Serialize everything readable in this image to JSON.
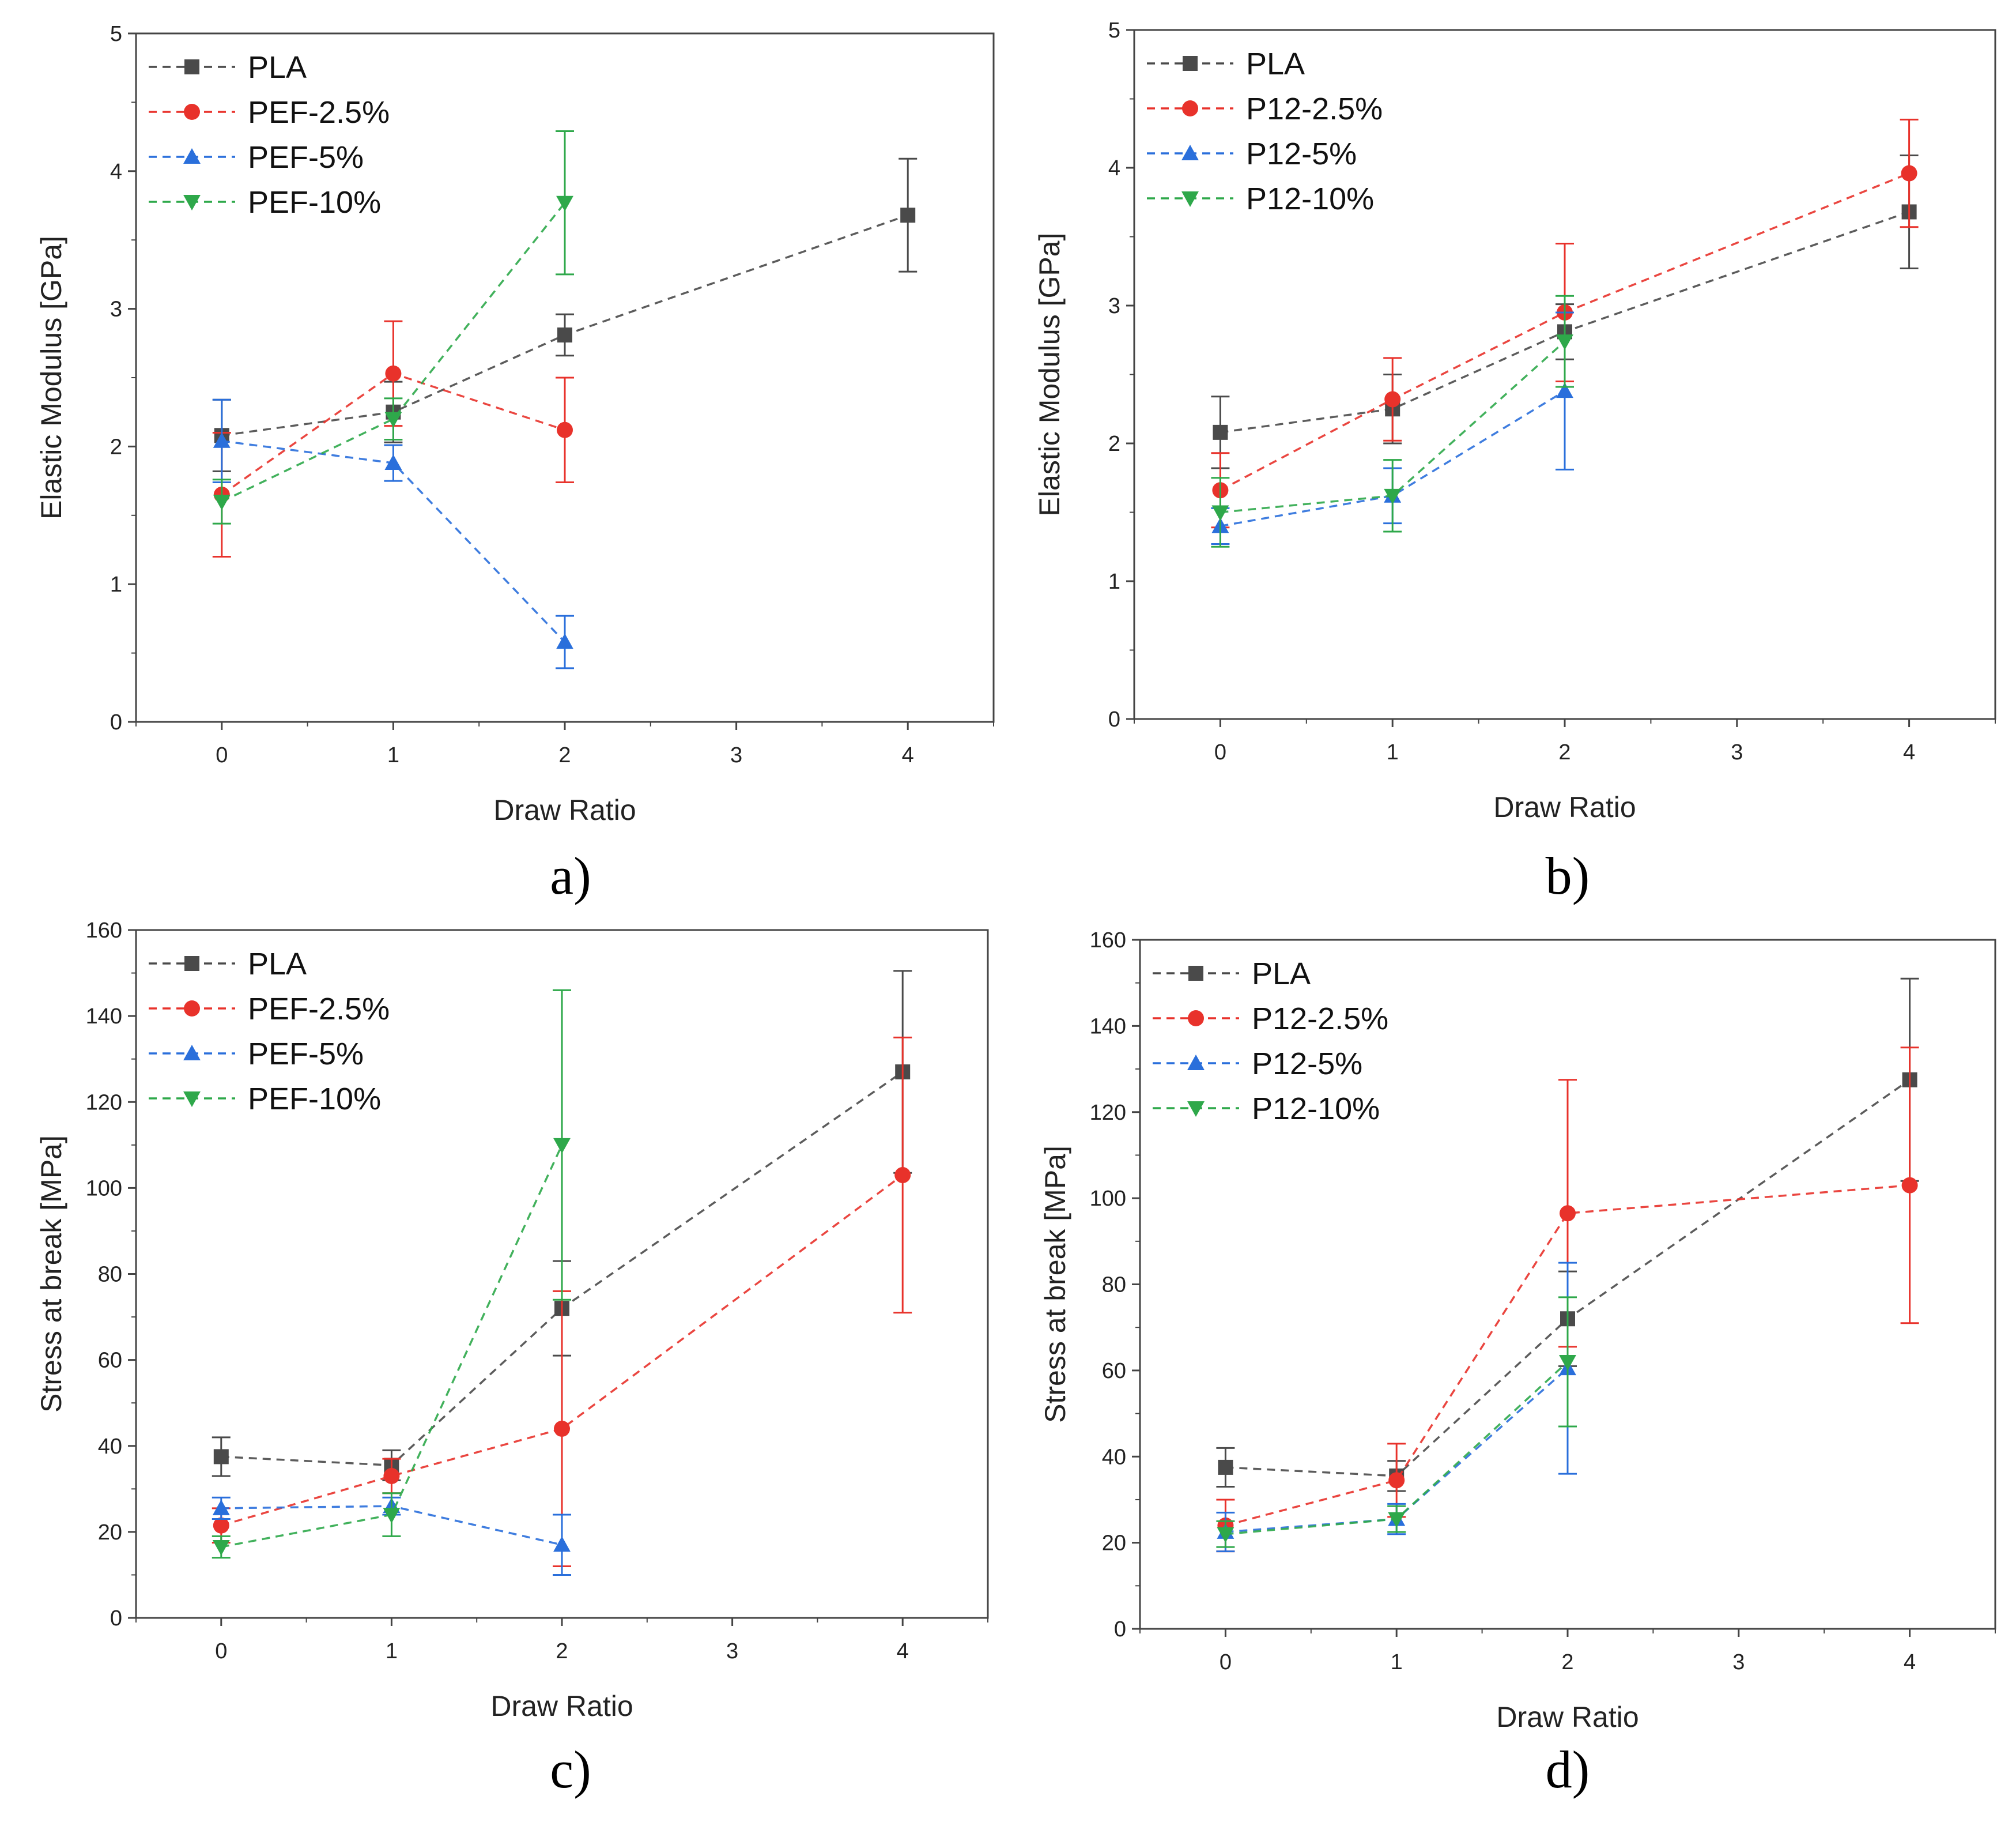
{
  "chart_data": [
    {
      "type": "line",
      "panel_label": "a)",
      "xlabel": "Draw Ratio",
      "ylabel": "Elastic Modulus [GPa]",
      "xlim": [
        -0.5,
        4.5
      ],
      "ylim": [
        0,
        5
      ],
      "xticks": [
        "0",
        "1",
        "2",
        "3",
        "4"
      ],
      "yticks": [
        "0",
        "1",
        "2",
        "3",
        "4",
        "5"
      ],
      "legend_position": "top-left",
      "series": [
        {
          "name": "PLA",
          "color": "#4a4a4a",
          "marker": "square",
          "x": [
            0,
            1,
            2,
            4
          ],
          "values": [
            2.08,
            2.25,
            2.81,
            3.68
          ],
          "err": [
            0.26,
            0.22,
            0.15,
            0.41
          ]
        },
        {
          "name": "PEF-2.5%",
          "color": "#e8322b",
          "marker": "circle",
          "x": [
            0,
            1,
            2
          ],
          "values": [
            1.65,
            2.53,
            2.12
          ],
          "err": [
            0.45,
            0.38,
            0.38
          ]
        },
        {
          "name": "PEF-5%",
          "color": "#2a6fdb",
          "marker": "triangle-up",
          "x": [
            0,
            1,
            2
          ],
          "values": [
            2.04,
            1.88,
            0.58
          ],
          "err": [
            0.3,
            0.13,
            0.19
          ]
        },
        {
          "name": "PEF-10%",
          "color": "#2ea84a",
          "marker": "triangle-down",
          "x": [
            0,
            1,
            2
          ],
          "values": [
            1.6,
            2.2,
            3.77
          ],
          "err": [
            0.16,
            0.15,
            0.52
          ]
        }
      ]
    },
    {
      "type": "line",
      "panel_label": "b)",
      "xlabel": "Draw Ratio",
      "ylabel": "Elastic Modulus [GPa]",
      "xlim": [
        -0.5,
        4.5
      ],
      "ylim": [
        0,
        5
      ],
      "xticks": [
        "0",
        "1",
        "2",
        "3",
        "4"
      ],
      "yticks": [
        "0",
        "1",
        "2",
        "3",
        "4",
        "5"
      ],
      "legend_position": "top-left",
      "series": [
        {
          "name": "PLA",
          "color": "#4a4a4a",
          "marker": "square",
          "x": [
            0,
            1,
            2,
            4
          ],
          "values": [
            2.08,
            2.25,
            2.81,
            3.68
          ],
          "err": [
            0.26,
            0.25,
            0.2,
            0.41
          ]
        },
        {
          "name": "P12-2.5%",
          "color": "#e8322b",
          "marker": "circle",
          "x": [
            0,
            1,
            2,
            4
          ],
          "values": [
            1.66,
            2.32,
            2.95,
            3.96
          ],
          "err": [
            0.27,
            0.3,
            0.5,
            0.39
          ]
        },
        {
          "name": "P12-5%",
          "color": "#2a6fdb",
          "marker": "triangle-up",
          "x": [
            0,
            1,
            2
          ],
          "values": [
            1.4,
            1.62,
            2.38
          ],
          "err": [
            0.13,
            0.2,
            0.57
          ]
        },
        {
          "name": "P12-10%",
          "color": "#2ea84a",
          "marker": "triangle-down",
          "x": [
            0,
            1,
            2
          ],
          "values": [
            1.5,
            1.62,
            2.74
          ],
          "err": [
            0.25,
            0.26,
            0.33
          ]
        }
      ]
    },
    {
      "type": "line",
      "panel_label": "c)",
      "xlabel": "Draw Ratio",
      "ylabel": "Stress at break [MPa]",
      "xlim": [
        -0.5,
        4.5
      ],
      "ylim": [
        0,
        160
      ],
      "xticks": [
        "0",
        "1",
        "2",
        "3",
        "4"
      ],
      "yticks": [
        "0",
        "20",
        "40",
        "60",
        "80",
        "100",
        "120",
        "140",
        "160"
      ],
      "legend_position": "top-left",
      "series": [
        {
          "name": "PLA",
          "color": "#4a4a4a",
          "marker": "square",
          "x": [
            0,
            1,
            2,
            4
          ],
          "values": [
            37.5,
            35.5,
            72,
            127
          ],
          "err": [
            4.5,
            3.5,
            11,
            23.5
          ]
        },
        {
          "name": "PEF-2.5%",
          "color": "#e8322b",
          "marker": "circle",
          "x": [
            0,
            1,
            2,
            4
          ],
          "values": [
            21.5,
            33,
            44,
            103
          ],
          "err": [
            4,
            4,
            32,
            32
          ]
        },
        {
          "name": "PEF-5%",
          "color": "#2a6fdb",
          "marker": "triangle-up",
          "x": [
            0,
            1,
            2
          ],
          "values": [
            25.5,
            26,
            17
          ],
          "err": [
            2.5,
            2,
            7
          ]
        },
        {
          "name": "PEF-10%",
          "color": "#2ea84a",
          "marker": "triangle-down",
          "x": [
            0,
            1,
            2
          ],
          "values": [
            16.5,
            24,
            110
          ],
          "err": [
            2.5,
            5,
            36
          ]
        }
      ]
    },
    {
      "type": "line",
      "panel_label": "d)",
      "xlabel": "Draw Ratio",
      "ylabel": "Stress at break [MPa]",
      "xlim": [
        -0.5,
        4.5
      ],
      "ylim": [
        0,
        160
      ],
      "xticks": [
        "0",
        "1",
        "2",
        "3",
        "4"
      ],
      "yticks": [
        "0",
        "20",
        "40",
        "60",
        "80",
        "100",
        "120",
        "140",
        "160"
      ],
      "legend_position": "top-left",
      "series": [
        {
          "name": "PLA",
          "color": "#4a4a4a",
          "marker": "square",
          "x": [
            0,
            1,
            2,
            4
          ],
          "values": [
            37.5,
            35.5,
            72,
            127.5
          ],
          "err": [
            4.5,
            3.5,
            11,
            23.5
          ]
        },
        {
          "name": "P12-2.5%",
          "color": "#e8322b",
          "marker": "circle",
          "x": [
            0,
            1,
            2,
            4
          ],
          "values": [
            24,
            34.5,
            96.5,
            103
          ],
          "err": [
            6,
            8.5,
            31,
            32
          ]
        },
        {
          "name": "P12-5%",
          "color": "#2a6fdb",
          "marker": "triangle-up",
          "x": [
            0,
            1,
            2
          ],
          "values": [
            22.5,
            25.5,
            60.5
          ],
          "err": [
            4.5,
            3.5,
            24.5
          ]
        },
        {
          "name": "P12-10%",
          "color": "#2ea84a",
          "marker": "triangle-down",
          "x": [
            0,
            1,
            2
          ],
          "values": [
            22,
            25.5,
            62
          ],
          "err": [
            3,
            3,
            15
          ]
        }
      ]
    }
  ]
}
